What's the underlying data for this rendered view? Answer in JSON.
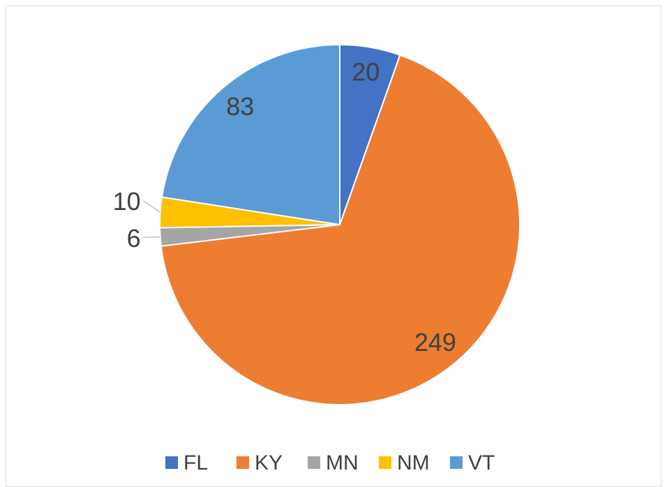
{
  "chart_data": {
    "type": "pie",
    "categories": [
      "FL",
      "KY",
      "MN",
      "NM",
      "VT"
    ],
    "values": [
      20,
      249,
      6,
      10,
      83
    ],
    "colors": [
      "#4472c4",
      "#ed7d31",
      "#a5a5a5",
      "#ffc000",
      "#5b9bd5"
    ],
    "legend": "bottom"
  }
}
